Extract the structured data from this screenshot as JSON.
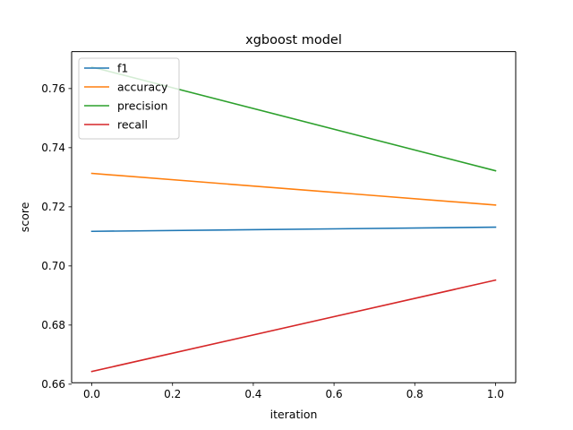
{
  "chart_data": {
    "type": "line",
    "title": "xgboost model",
    "xlabel": "iteration",
    "ylabel": "score",
    "x": [
      0.0,
      1.0
    ],
    "xlim": [
      -0.05,
      1.05
    ],
    "ylim": [
      0.6605,
      0.7725
    ],
    "xticks": [
      0.0,
      0.2,
      0.4,
      0.6,
      0.8,
      1.0
    ],
    "xtick_labels": [
      "0.0",
      "0.2",
      "0.4",
      "0.6",
      "0.8",
      "1.0"
    ],
    "yticks": [
      0.66,
      0.68,
      0.7,
      0.72,
      0.74,
      0.76
    ],
    "ytick_labels": [
      "0.66",
      "0.68",
      "0.70",
      "0.72",
      "0.74",
      "0.76"
    ],
    "grid": false,
    "legend_position": "top-left",
    "series": [
      {
        "name": "f1",
        "color": "#1f77b4",
        "values": [
          0.7117,
          0.7131
        ]
      },
      {
        "name": "accuracy",
        "color": "#ff7f0e",
        "values": [
          0.7313,
          0.7206
        ]
      },
      {
        "name": "precision",
        "color": "#2ca02c",
        "values": [
          0.7673,
          0.7322
        ]
      },
      {
        "name": "recall",
        "color": "#d62728",
        "values": [
          0.6643,
          0.6952
        ]
      }
    ]
  }
}
